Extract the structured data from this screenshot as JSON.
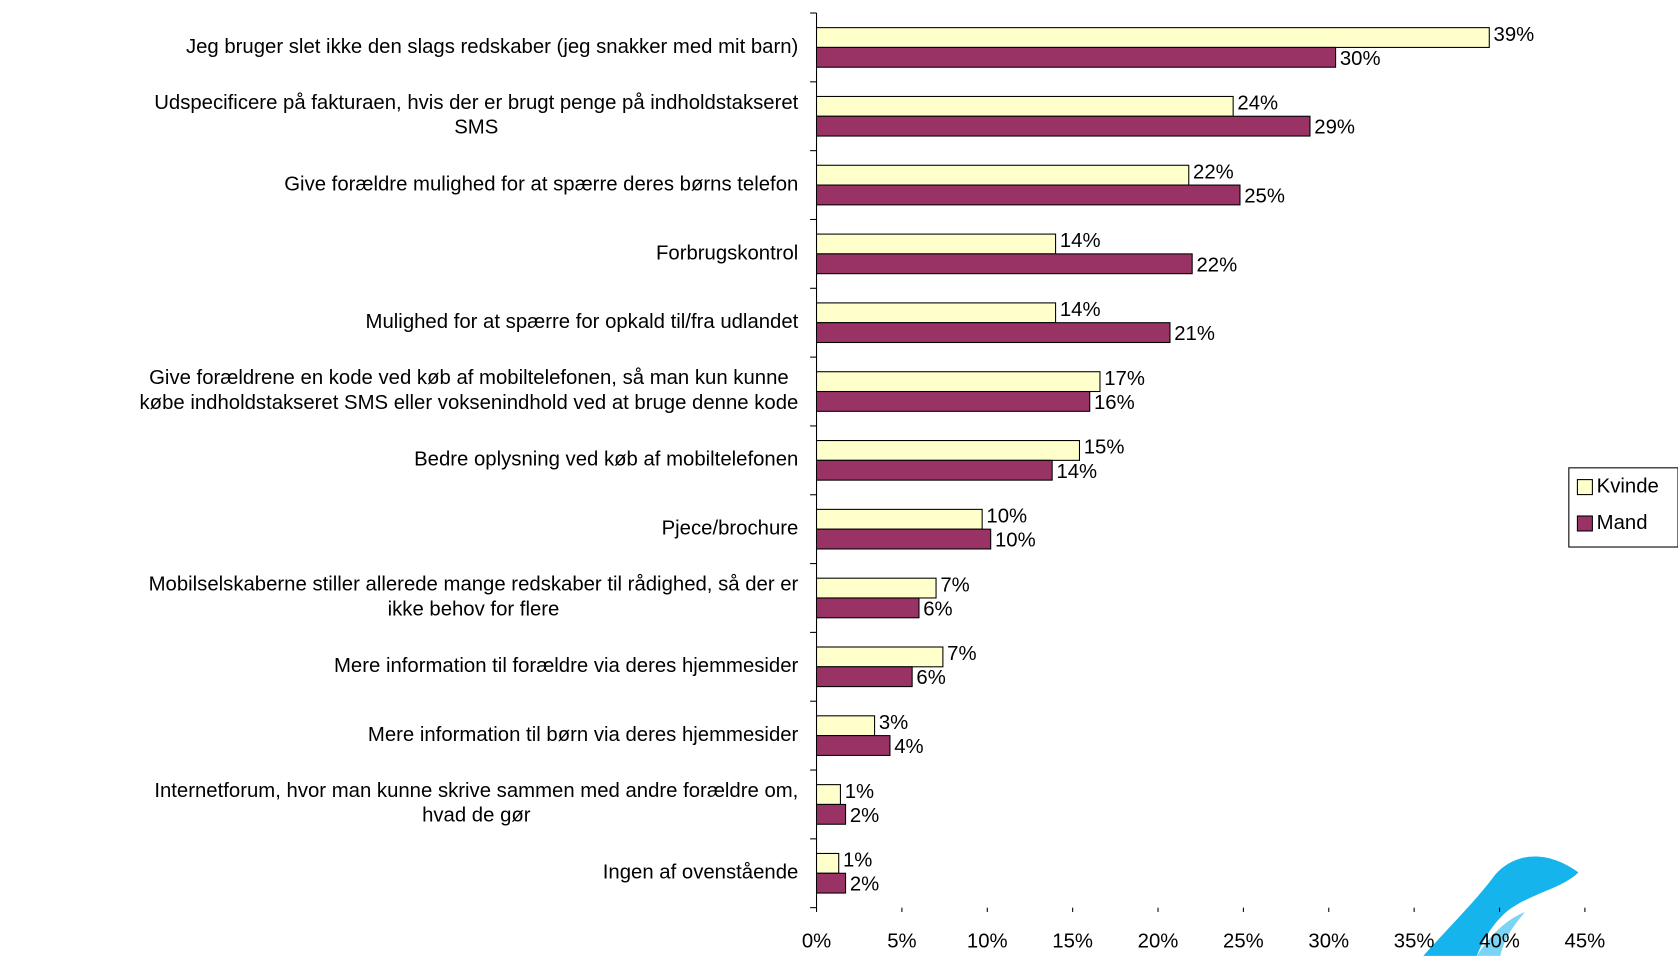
{
  "chart_data": {
    "type": "hbar",
    "categories": [
      "Jeg bruger slet ikke den slags redskaber (jeg snakker med mit barn)",
      "Udspecificere på fakturaen, hvis der er brugt penge på indholdstakseret\nSMS",
      "Give forældre mulighed for at spærre deres børns telefon",
      "Forbrugskontrol",
      "Mulighed for at spærre for opkald til/fra udlandet",
      "Give forældrene en kode ved køb af mobiltelefonen, så man kun kunne\nkøbe indholdstakseret SMS eller voksenindhold ved at bruge denne kode",
      "Bedre oplysning ved køb af mobiltelefonen",
      "Pjece/brochure",
      "Mobilselskaberne stiller allerede mange redskaber til rådighed, så der er\nikke behov for flere",
      "Mere information til forældre via deres hjemmesider",
      "Mere information til børn via deres hjemmesider",
      "Internetforum, hvor man kunne skrive sammen med andre forældre om,\nhvad de gør",
      "Ingen af ovenstående"
    ],
    "series": [
      {
        "name": "Kvinde",
        "color": "#ffffcc",
        "values": [
          39.4,
          24.4,
          21.8,
          14.0,
          14.0,
          16.6,
          15.4,
          9.7,
          7.0,
          7.4,
          3.4,
          1.4,
          1.3
        ],
        "value_labels": [
          "39%",
          "24%",
          "22%",
          "14%",
          "14%",
          "17%",
          "15%",
          "10%",
          "7%",
          "7%",
          "3%",
          "1%",
          "1%"
        ]
      },
      {
        "name": "Mand",
        "color": "#993366",
        "values": [
          30.4,
          28.9,
          24.8,
          22.0,
          20.7,
          16.0,
          13.8,
          10.2,
          6.0,
          5.6,
          4.3,
          1.7,
          1.7
        ],
        "value_labels": [
          "30%",
          "29%",
          "25%",
          "22%",
          "21%",
          "16%",
          "14%",
          "10%",
          "6%",
          "6%",
          "4%",
          "2%",
          "2%"
        ]
      }
    ],
    "xlim": [
      0,
      45
    ],
    "xticks": [
      {
        "value": 0,
        "label": "0%"
      },
      {
        "value": 5,
        "label": "5%"
      },
      {
        "value": 10,
        "label": "10%"
      },
      {
        "value": 15,
        "label": "15%"
      },
      {
        "value": 20,
        "label": "20%"
      },
      {
        "value": 25,
        "label": "25%"
      },
      {
        "value": 30,
        "label": "30%"
      },
      {
        "value": 35,
        "label": "35%"
      },
      {
        "value": 40,
        "label": "40%"
      },
      {
        "value": 45,
        "label": "45%"
      }
    ],
    "legend": "right"
  }
}
